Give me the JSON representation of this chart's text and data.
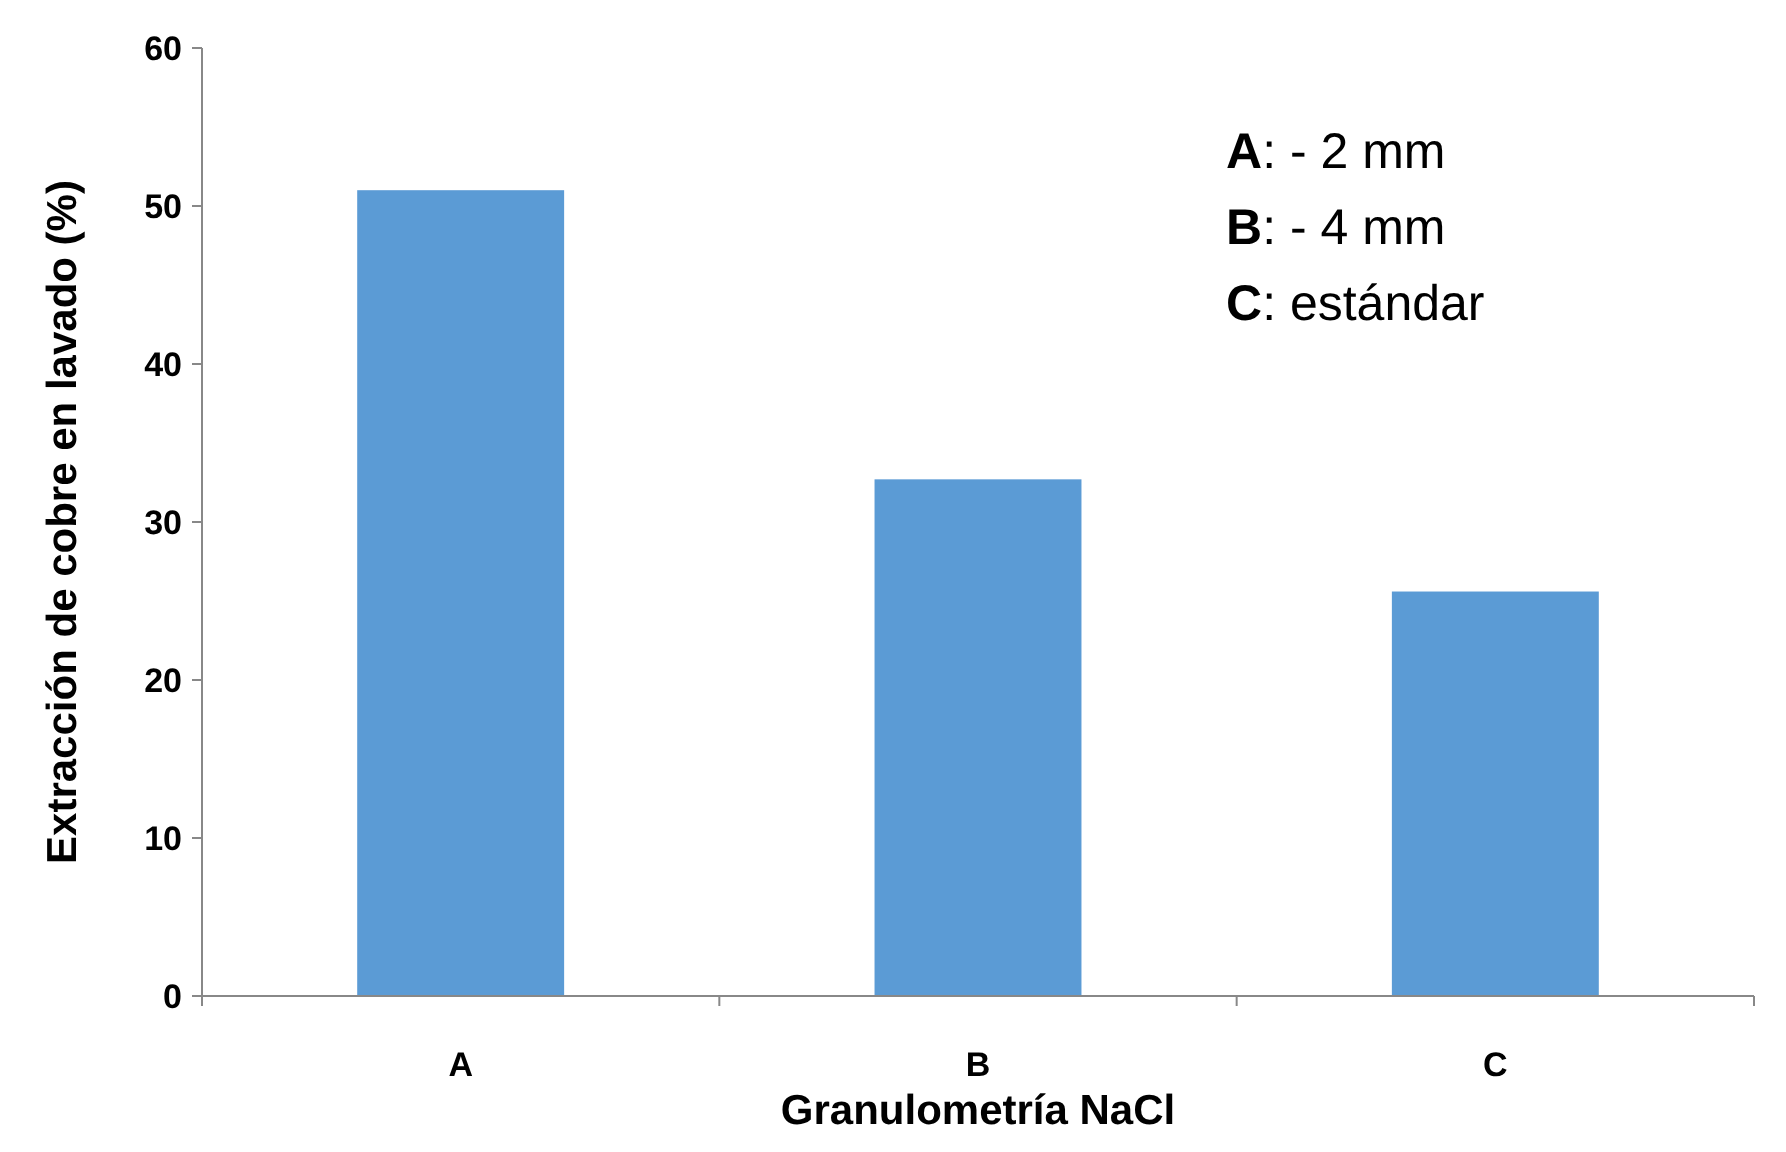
{
  "chart_data": {
    "type": "bar",
    "xlabel": "Granulometría NaCl",
    "ylabel": "Extracción de cobre en lavado (%)",
    "categories": [
      "A",
      "B",
      "C"
    ],
    "values": [
      51,
      32.7,
      25.6
    ],
    "color": "#5b9bd5",
    "ylim": [
      0,
      60
    ],
    "yticks": [
      0,
      10,
      20,
      30,
      40,
      50,
      60
    ],
    "grid": false,
    "annotations": [
      "A: - 2 mm",
      "B: - 4 mm",
      "C: estándar"
    ]
  }
}
